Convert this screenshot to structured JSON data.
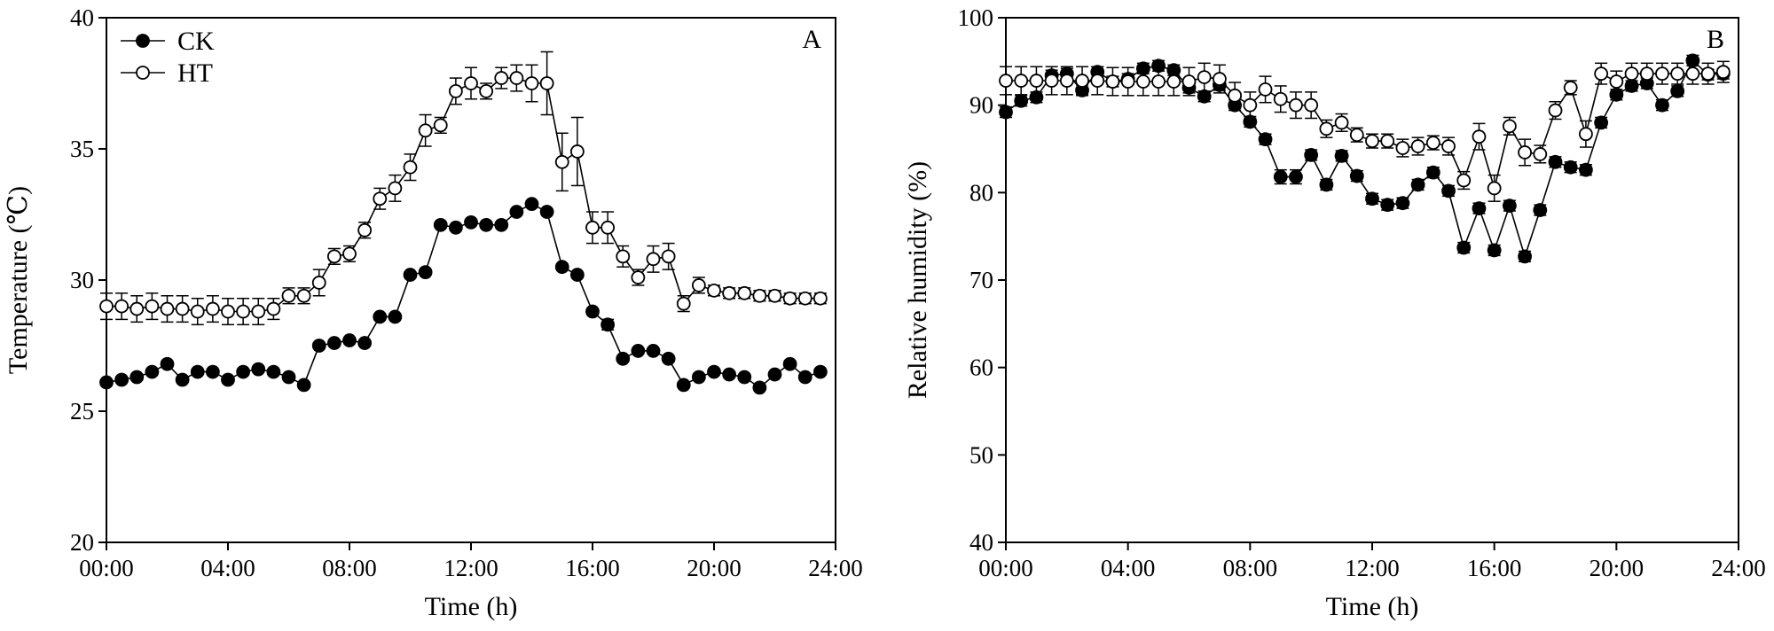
{
  "chart_data": [
    {
      "panel": "A",
      "type": "line",
      "xlabel": "Time (h)",
      "ylabel": "Temperature (℃)",
      "xlim": [
        0,
        24
      ],
      "ylim": [
        20,
        40
      ],
      "xticks": [
        "00:00",
        "04:00",
        "08:00",
        "12:00",
        "16:00",
        "20:00",
        "24:00"
      ],
      "yticks": [
        20,
        25,
        30,
        35,
        40
      ],
      "x": [
        0.0,
        0.5,
        1.0,
        1.5,
        2.0,
        2.5,
        3.0,
        3.5,
        4.0,
        4.5,
        5.0,
        5.5,
        6.0,
        6.5,
        7.0,
        7.5,
        8.0,
        8.5,
        9.0,
        9.5,
        10.0,
        10.5,
        11.0,
        11.5,
        12.0,
        12.5,
        13.0,
        13.5,
        14.0,
        14.5,
        15.0,
        15.5,
        16.0,
        16.5,
        17.0,
        17.5,
        18.0,
        18.5,
        19.0,
        19.5,
        20.0,
        20.5,
        21.0,
        21.5,
        22.0,
        22.5,
        23.0,
        23.5
      ],
      "legend_position": "top-left",
      "series": [
        {
          "name": "CK",
          "marker": "filled-circle",
          "values": [
            26.1,
            26.2,
            26.3,
            26.5,
            26.8,
            26.2,
            26.5,
            26.5,
            26.2,
            26.5,
            26.6,
            26.5,
            26.3,
            26.0,
            27.5,
            27.6,
            27.7,
            27.6,
            28.6,
            28.6,
            30.2,
            30.3,
            32.1,
            32.0,
            32.2,
            32.1,
            32.1,
            32.6,
            32.9,
            32.6,
            30.5,
            30.2,
            28.8,
            28.3,
            27.0,
            27.3,
            27.3,
            27.0,
            26.0,
            26.3,
            26.5,
            26.4,
            26.3,
            25.9,
            26.4,
            26.8,
            26.3,
            26.5
          ],
          "errors": [
            0.1,
            0.1,
            0.1,
            0.1,
            0.1,
            0.1,
            0.1,
            0.1,
            0.1,
            0.1,
            0.1,
            0.1,
            0.1,
            0.1,
            0.1,
            0.1,
            0.1,
            0.1,
            0.1,
            0.1,
            0.1,
            0.1,
            0.1,
            0.1,
            0.1,
            0.1,
            0.1,
            0.1,
            0.1,
            0.1,
            0.1,
            0.1,
            0.1,
            0.2,
            0.1,
            0.1,
            0.1,
            0.1,
            0.1,
            0.1,
            0.1,
            0.1,
            0.1,
            0.1,
            0.1,
            0.1,
            0.1,
            0.1
          ]
        },
        {
          "name": "HT",
          "marker": "open-circle",
          "values": [
            29.0,
            29.0,
            28.9,
            29.0,
            28.9,
            28.9,
            28.8,
            28.9,
            28.8,
            28.8,
            28.8,
            28.9,
            29.4,
            29.4,
            29.9,
            30.9,
            31.0,
            31.9,
            33.1,
            33.5,
            34.3,
            35.7,
            35.9,
            37.2,
            37.5,
            37.2,
            37.7,
            37.7,
            37.5,
            37.5,
            34.5,
            34.9,
            32.0,
            32.0,
            30.9,
            30.1,
            30.8,
            30.9,
            29.1,
            29.8,
            29.6,
            29.5,
            29.5,
            29.4,
            29.4,
            29.3,
            29.3,
            29.3
          ],
          "errors": [
            0.5,
            0.5,
            0.5,
            0.5,
            0.5,
            0.5,
            0.5,
            0.5,
            0.5,
            0.5,
            0.5,
            0.4,
            0.3,
            0.3,
            0.5,
            0.3,
            0.3,
            0.3,
            0.4,
            0.5,
            0.5,
            0.6,
            0.3,
            0.5,
            0.6,
            0.3,
            0.4,
            0.5,
            0.7,
            1.2,
            1.1,
            1.3,
            0.6,
            0.6,
            0.4,
            0.3,
            0.5,
            0.5,
            0.3,
            0.3,
            0.2,
            0.2,
            0.2,
            0.2,
            0.2,
            0.2,
            0.2,
            0.2
          ]
        }
      ]
    },
    {
      "panel": "B",
      "type": "line",
      "xlabel": "Time (h)",
      "ylabel": "Relative humidity (%)",
      "xlim": [
        0,
        24
      ],
      "ylim": [
        40,
        100
      ],
      "xticks": [
        "00:00",
        "04:00",
        "08:00",
        "12:00",
        "16:00",
        "20:00",
        "24:00"
      ],
      "yticks": [
        40,
        50,
        60,
        70,
        80,
        90,
        100
      ],
      "x": [
        0.0,
        0.5,
        1.0,
        1.5,
        2.0,
        2.5,
        3.0,
        3.5,
        4.0,
        4.5,
        5.0,
        5.5,
        6.0,
        6.5,
        7.0,
        7.5,
        8.0,
        8.5,
        9.0,
        9.5,
        10.0,
        10.5,
        11.0,
        11.5,
        12.0,
        12.5,
        13.0,
        13.5,
        14.0,
        14.5,
        15.0,
        15.5,
        16.0,
        16.5,
        17.0,
        17.5,
        18.0,
        18.5,
        19.0,
        19.5,
        20.0,
        20.5,
        21.0,
        21.5,
        22.0,
        22.5,
        23.0,
        23.5
      ],
      "series": [
        {
          "name": "CK",
          "marker": "filled-circle",
          "values": [
            89.2,
            90.5,
            90.9,
            93.4,
            93.6,
            91.7,
            93.8,
            92.7,
            93.0,
            94.2,
            94.5,
            94.0,
            92.0,
            91.0,
            92.3,
            90.0,
            88.1,
            86.1,
            81.8,
            81.8,
            84.3,
            80.9,
            84.2,
            81.9,
            79.3,
            78.6,
            78.8,
            80.9,
            82.3,
            80.2,
            73.7,
            78.2,
            73.4,
            78.5,
            72.7,
            78.0,
            83.5,
            82.9,
            82.6,
            88.0,
            91.2,
            92.2,
            92.5,
            90.0,
            91.6,
            95.1,
            93.5,
            93.6
          ],
          "errors": [
            0.6,
            0.6,
            0.6,
            0.6,
            0.6,
            0.6,
            0.6,
            0.6,
            0.6,
            0.6,
            0.6,
            0.6,
            0.6,
            0.6,
            0.6,
            0.6,
            0.6,
            0.6,
            0.8,
            0.8,
            0.6,
            0.6,
            0.6,
            0.6,
            0.6,
            0.6,
            0.6,
            0.6,
            0.6,
            0.6,
            0.6,
            0.6,
            0.6,
            0.6,
            0.6,
            0.6,
            0.6,
            0.6,
            0.6,
            0.6,
            0.6,
            0.6,
            0.6,
            0.6,
            0.6,
            0.6,
            0.6,
            0.6
          ]
        },
        {
          "name": "HT",
          "marker": "open-circle",
          "values": [
            92.8,
            92.8,
            92.8,
            92.8,
            92.8,
            92.8,
            92.8,
            92.7,
            92.7,
            92.7,
            92.7,
            92.7,
            92.7,
            93.2,
            93.0,
            91.1,
            90.0,
            91.8,
            90.7,
            90.0,
            90.0,
            87.3,
            88.0,
            86.6,
            85.9,
            85.9,
            85.1,
            85.3,
            85.7,
            85.3,
            81.4,
            86.4,
            80.5,
            87.6,
            84.6,
            84.4,
            89.4,
            92.0,
            86.7,
            93.6,
            92.7,
            93.6,
            93.6,
            93.6,
            93.6,
            93.6,
            93.6,
            93.8
          ],
          "errors": [
            1.6,
            1.6,
            1.6,
            1.6,
            1.6,
            1.6,
            1.6,
            1.6,
            1.6,
            1.6,
            1.6,
            1.6,
            1.6,
            1.6,
            1.6,
            1.5,
            1.5,
            1.5,
            1.5,
            1.5,
            1.5,
            1.0,
            1.0,
            0.8,
            0.8,
            0.8,
            1.0,
            1.0,
            0.8,
            1.0,
            1.0,
            1.5,
            1.5,
            1.0,
            1.5,
            1.0,
            1.0,
            0.8,
            1.5,
            1.2,
            1.2,
            1.2,
            1.2,
            1.2,
            1.2,
            1.2,
            1.2,
            1.2
          ]
        }
      ]
    }
  ]
}
